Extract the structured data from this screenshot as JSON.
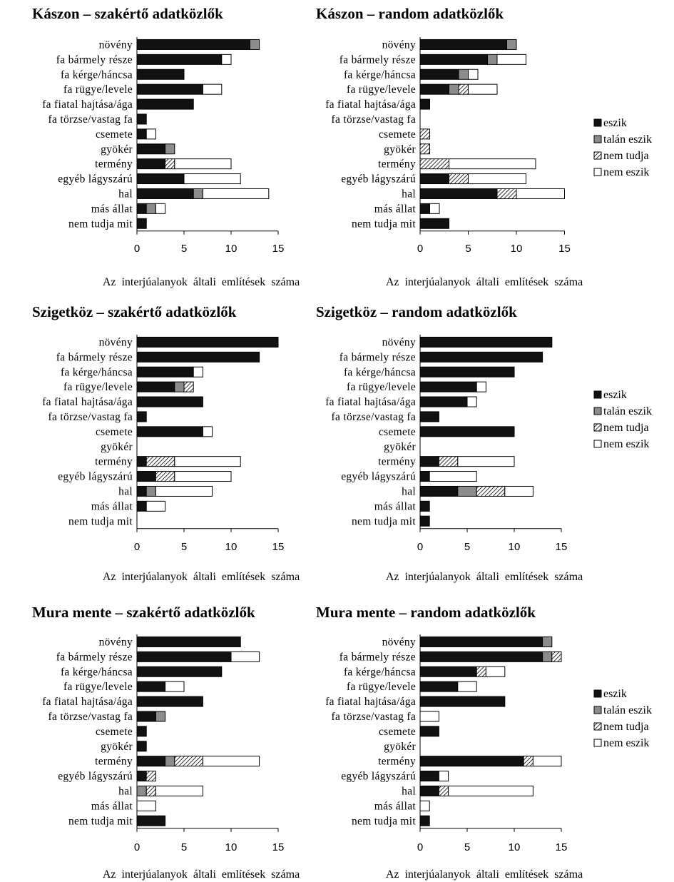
{
  "colors": {
    "eszik": "#111111",
    "talan": "#8c8c8c",
    "nem_tudja": "hatch",
    "nem_eszik": "#ffffff"
  },
  "chart_data": [
    {
      "type": "bar",
      "orientation": "horizontal",
      "stacked": true,
      "title": "Kászon – szakértő adatközlők",
      "xlabel": "Az interjúalanyok általi említések száma",
      "xlim": [
        0,
        15
      ],
      "xticks": [
        0,
        5,
        10,
        15
      ],
      "categories": [
        "növény",
        "fa bármely része",
        "fa kérge/háncsa",
        "fa rügye/levele",
        "fa fiatal hajtása/ága",
        "fa törzse/vastag fa",
        "csemete",
        "gyökér",
        "termény",
        "egyéb lágyszárú",
        "hal",
        "más állat",
        "nem tudja mit"
      ],
      "series": [
        {
          "name": "eszik",
          "values": [
            12,
            9,
            5,
            7,
            6,
            1,
            1,
            3,
            3,
            5,
            6,
            1,
            1
          ]
        },
        {
          "name": "talán eszik",
          "values": [
            1,
            0,
            0,
            0,
            0,
            0,
            0,
            1,
            0,
            0,
            1,
            1,
            0
          ]
        },
        {
          "name": "nem tudja",
          "values": [
            0,
            0,
            0,
            0,
            0,
            0,
            0,
            0,
            1,
            0,
            0,
            0,
            0
          ]
        },
        {
          "name": "nem eszik",
          "values": [
            0,
            1,
            0,
            2,
            0,
            0,
            1,
            0,
            6,
            6,
            7,
            1,
            0
          ]
        }
      ]
    },
    {
      "type": "bar",
      "orientation": "horizontal",
      "stacked": true,
      "title": "Kászon – random adatközlők",
      "xlabel": "Az interjúalanyok általi említések száma",
      "xlim": [
        0,
        15
      ],
      "xticks": [
        0,
        5,
        10,
        15
      ],
      "categories": [
        "növény",
        "fa bármely része",
        "fa kérge/háncsa",
        "fa rügye/levele",
        "fa fiatal hajtása/ága",
        "fa törzse/vastag fa",
        "csemete",
        "gyökér",
        "termény",
        "egyéb lágyszárú",
        "hal",
        "más állat",
        "nem tudja mit"
      ],
      "series": [
        {
          "name": "eszik",
          "values": [
            9,
            7,
            4,
            3,
            1,
            0,
            0,
            0,
            0,
            3,
            8,
            1,
            3
          ]
        },
        {
          "name": "talán eszik",
          "values": [
            1,
            1,
            1,
            1,
            0,
            0,
            0,
            0,
            0,
            0,
            0,
            0,
            0
          ]
        },
        {
          "name": "nem tudja",
          "values": [
            0,
            0,
            0,
            1,
            0,
            0,
            1,
            1,
            3,
            2,
            2,
            0,
            0
          ]
        },
        {
          "name": "nem eszik",
          "values": [
            0,
            3,
            1,
            3,
            0,
            0,
            0,
            0,
            9,
            6,
            5,
            1,
            0
          ]
        }
      ]
    },
    {
      "type": "bar",
      "orientation": "horizontal",
      "stacked": true,
      "title": "Szigetköz – szakértő adatközlők",
      "xlabel": "Az interjúalanyok általi említések száma",
      "xlim": [
        0,
        15
      ],
      "xticks": [
        0,
        5,
        10,
        15
      ],
      "categories": [
        "növény",
        "fa bármely része",
        "fa kérge/háncsa",
        "fa rügye/levele",
        "fa fiatal hajtása/ága",
        "fa törzse/vastag fa",
        "csemete",
        "gyökér",
        "termény",
        "egyéb lágyszárú",
        "hal",
        "más állat",
        "nem tudja mit"
      ],
      "series": [
        {
          "name": "eszik",
          "values": [
            15,
            13,
            6,
            4,
            7,
            1,
            7,
            0,
            1,
            2,
            1,
            1,
            0
          ]
        },
        {
          "name": "talán eszik",
          "values": [
            0,
            0,
            0,
            1,
            0,
            0,
            0,
            0,
            0,
            0,
            1,
            0,
            0
          ]
        },
        {
          "name": "nem tudja",
          "values": [
            0,
            0,
            0,
            1,
            0,
            0,
            0,
            0,
            3,
            2,
            0,
            0,
            0
          ]
        },
        {
          "name": "nem eszik",
          "values": [
            0,
            0,
            1,
            0,
            0,
            0,
            1,
            0,
            7,
            6,
            6,
            2,
            0
          ]
        }
      ]
    },
    {
      "type": "bar",
      "orientation": "horizontal",
      "stacked": true,
      "title": "Szigetköz – random adatközlők",
      "xlabel": "Az interjúalanyok általi említések száma",
      "xlim": [
        0,
        15
      ],
      "xticks": [
        0,
        5,
        10,
        15
      ],
      "categories": [
        "növény",
        "fa bármely része",
        "fa kérge/háncsa",
        "fa rügye/levele",
        "fa fiatal hajtása/ága",
        "fa törzse/vastag fa",
        "csemete",
        "gyökér",
        "termény",
        "egyéb lágyszárú",
        "hal",
        "más állat",
        "nem tudja mit"
      ],
      "series": [
        {
          "name": "eszik",
          "values": [
            14,
            13,
            10,
            6,
            5,
            2,
            10,
            0,
            2,
            1,
            4,
            1,
            1
          ]
        },
        {
          "name": "talán eszik",
          "values": [
            0,
            0,
            0,
            0,
            0,
            0,
            0,
            0,
            0,
            0,
            2,
            0,
            0
          ]
        },
        {
          "name": "nem tudja",
          "values": [
            0,
            0,
            0,
            0,
            0,
            0,
            0,
            0,
            2,
            0,
            3,
            0,
            0
          ]
        },
        {
          "name": "nem eszik",
          "values": [
            0,
            0,
            0,
            1,
            1,
            0,
            0,
            0,
            6,
            5,
            3,
            0,
            0
          ]
        }
      ]
    },
    {
      "type": "bar",
      "orientation": "horizontal",
      "stacked": true,
      "title": "Mura mente – szakértő adatközlők",
      "xlabel": "Az interjúalanyok általi említések száma",
      "xlim": [
        0,
        15
      ],
      "xticks": [
        0,
        5,
        10,
        15
      ],
      "categories": [
        "növény",
        "fa bármely része",
        "fa kérge/háncsa",
        "fa rügye/levele",
        "fa fiatal hajtása/ága",
        "fa törzse/vastag fa",
        "csemete",
        "gyökér",
        "termény",
        "egyéb lágyszárú",
        "hal",
        "más állat",
        "nem tudja mit"
      ],
      "series": [
        {
          "name": "eszik",
          "values": [
            11,
            10,
            9,
            3,
            7,
            2,
            1,
            1,
            3,
            1,
            0,
            0,
            3
          ]
        },
        {
          "name": "talán eszik",
          "values": [
            0,
            0,
            0,
            0,
            0,
            1,
            0,
            0,
            1,
            0,
            1,
            0,
            0
          ]
        },
        {
          "name": "nem tudja",
          "values": [
            0,
            0,
            0,
            0,
            0,
            0,
            0,
            0,
            3,
            1,
            1,
            0,
            0
          ]
        },
        {
          "name": "nem eszik",
          "values": [
            0,
            3,
            0,
            2,
            0,
            0,
            0,
            0,
            6,
            0,
            5,
            2,
            0
          ]
        }
      ]
    },
    {
      "type": "bar",
      "orientation": "horizontal",
      "stacked": true,
      "title": "Mura mente – random adatközlők",
      "xlabel": "Az interjúalanyok általi említések száma",
      "xlim": [
        0,
        15
      ],
      "xticks": [
        0,
        5,
        10,
        15
      ],
      "categories": [
        "növény",
        "fa bármely része",
        "fa kérge/háncsa",
        "fa rügye/levele",
        "fa fiatal hajtása/ága",
        "fa törzse/vastag fa",
        "csemete",
        "gyökér",
        "termény",
        "egyéb lágyszárú",
        "hal",
        "más állat",
        "nem tudja mit"
      ],
      "series": [
        {
          "name": "eszik",
          "values": [
            13,
            13,
            6,
            4,
            9,
            0,
            2,
            0,
            11,
            2,
            2,
            0,
            1
          ]
        },
        {
          "name": "talán eszik",
          "values": [
            1,
            1,
            0,
            0,
            0,
            0,
            0,
            0,
            0,
            0,
            0,
            0,
            0
          ]
        },
        {
          "name": "nem tudja",
          "values": [
            0,
            1,
            1,
            0,
            0,
            0,
            0,
            0,
            1,
            0,
            1,
            0,
            0
          ]
        },
        {
          "name": "nem eszik",
          "values": [
            0,
            0,
            2,
            2,
            0,
            2,
            0,
            0,
            3,
            1,
            9,
            1,
            0
          ]
        }
      ]
    }
  ],
  "legends": [
    {
      "items": [
        "eszik",
        "talán eszik",
        "nem tudja",
        "nem eszik"
      ]
    },
    {
      "items": [
        "eszik",
        "talán eszik",
        "nem tudja",
        "nem eszik"
      ]
    },
    {
      "items": [
        "eszik",
        "talán eszik",
        "nem tudja",
        "nem eszik"
      ]
    }
  ]
}
